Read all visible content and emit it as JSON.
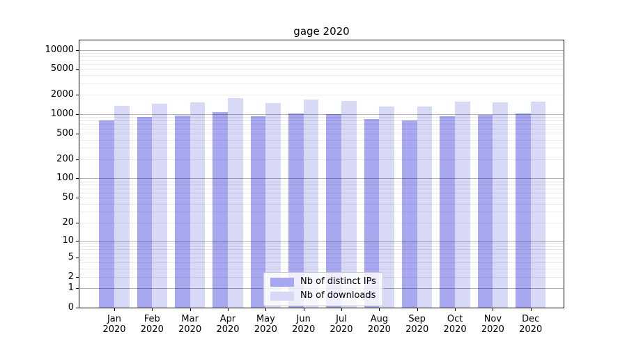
{
  "title": "gage 2020",
  "colors": {
    "bar_distinct_ips": "#a8a8f1",
    "bar_downloads": "#d8d8f7",
    "axis": "#000000",
    "grid_major": "#b3b3b3",
    "grid_minor": "#ebebeb",
    "legend_border": "#cccccc"
  },
  "chart_data": {
    "type": "bar",
    "title": "gage 2020",
    "scale": "log1p",
    "grid": true,
    "legend_position": "lower center",
    "categories": [
      "Jan",
      "Feb",
      "Mar",
      "Apr",
      "May",
      "Jun",
      "Jul",
      "Aug",
      "Sep",
      "Oct",
      "Nov",
      "Dec"
    ],
    "year_label": "2020",
    "series": [
      {
        "name": "Nb of distinct IPs",
        "color": "#a8a8f1",
        "values": [
          800,
          920,
          960,
          1070,
          940,
          1030,
          1010,
          850,
          810,
          930,
          990,
          1020
        ]
      },
      {
        "name": "Nb of downloads",
        "color": "#d8d8f7",
        "values": [
          1340,
          1470,
          1530,
          1800,
          1500,
          1700,
          1630,
          1330,
          1330,
          1590,
          1520,
          1590
        ]
      }
    ],
    "y_ticks": [
      10000,
      5000,
      2000,
      1000,
      500,
      200,
      100,
      50,
      20,
      10,
      5,
      2,
      1,
      0
    ],
    "ylim": [
      0,
      14000
    ]
  }
}
